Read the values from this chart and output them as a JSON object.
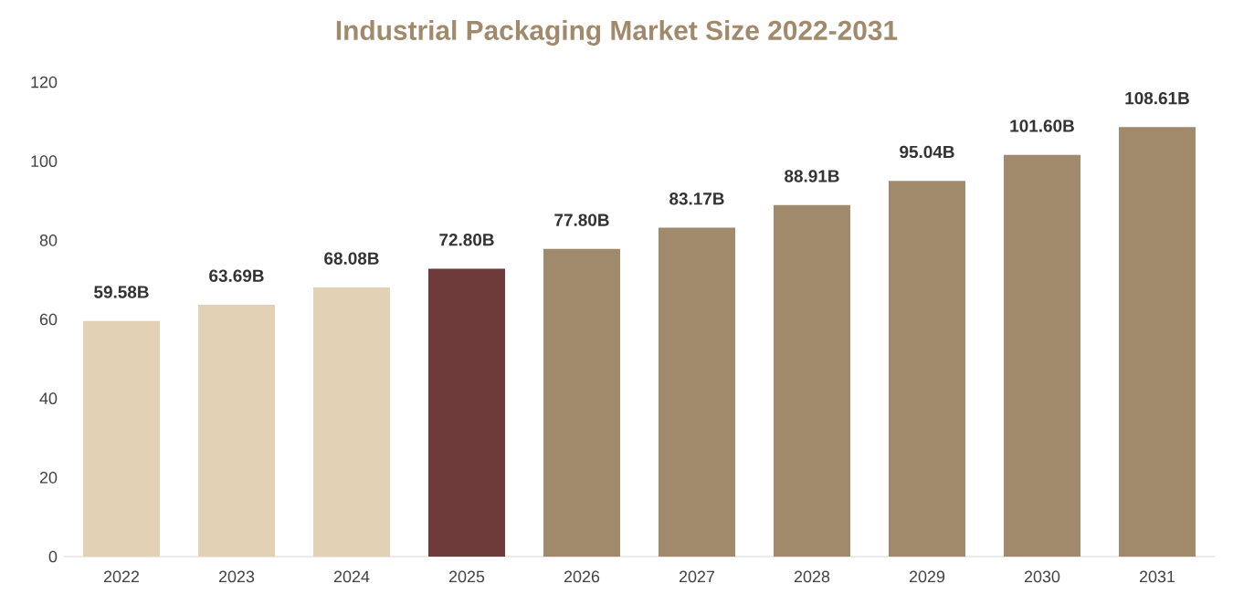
{
  "chart_data": {
    "type": "bar",
    "title": "Industrial Packaging Market Size 2022-2031",
    "categories": [
      "2022",
      "2023",
      "2024",
      "2025",
      "2026",
      "2027",
      "2028",
      "2029",
      "2030",
      "2031"
    ],
    "values": [
      59.58,
      63.69,
      68.08,
      72.8,
      77.8,
      83.17,
      88.91,
      95.04,
      101.6,
      108.61
    ],
    "value_labels": [
      "59.58B",
      "63.69B",
      "68.08B",
      "72.80B",
      "77.80B",
      "83.17B",
      "88.91B",
      "95.04B",
      "101.60B",
      "108.61B"
    ],
    "colors": [
      "#e2d1b4",
      "#e2d1b4",
      "#e2d1b4",
      "#6f3a3a",
      "#a08a6b",
      "#a08a6b",
      "#a08a6b",
      "#a08a6b",
      "#a08a6b",
      "#a08a6b"
    ],
    "ylim": [
      0,
      120
    ],
    "yticks": [
      0,
      20,
      40,
      60,
      80,
      100,
      120
    ],
    "grid": false
  }
}
